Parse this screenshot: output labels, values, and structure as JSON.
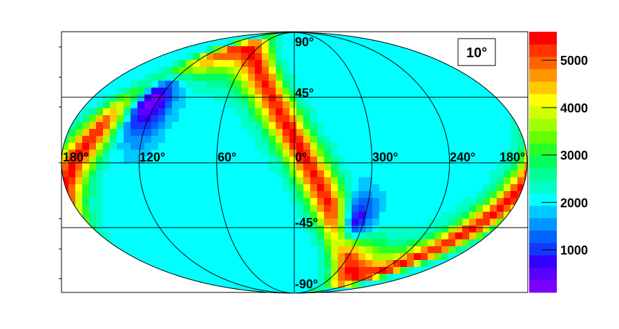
{
  "chart_data": {
    "type": "heatmap",
    "projection": "mollweide",
    "title": "",
    "annotation_box": "10°",
    "longitude_labels": [
      "180°",
      "120°",
      "60°",
      "0°",
      "300°",
      "240°",
      "180°"
    ],
    "longitude_label_values": [
      180,
      120,
      60,
      0,
      300,
      240,
      180
    ],
    "latitude_labels": [
      "90°",
      "45°",
      "-45°",
      "-90°"
    ],
    "latitude_label_values": [
      90,
      45,
      -45,
      -90
    ],
    "colorbar": {
      "ticks": [
        1000,
        2000,
        3000,
        4000,
        5000
      ],
      "tick_labels": [
        "1000",
        "2000",
        "3000",
        "4000",
        "5000"
      ],
      "range": [
        100,
        5600
      ],
      "colors": [
        "#7b00ff",
        "#5a00ff",
        "#3200ff",
        "#1437ff",
        "#0064ff",
        "#0096ff",
        "#00c8ff",
        "#00ffff",
        "#00ffc8",
        "#00ff96",
        "#00ff5a",
        "#28ff28",
        "#64ff00",
        "#a0ff00",
        "#d2ff00",
        "#ffff00",
        "#ffc800",
        "#ff9600",
        "#ff6400",
        "#ff3200",
        "#ff0000"
      ]
    },
    "features": [
      {
        "kind": "minimum",
        "lon": 125,
        "lat": 28,
        "value": 300,
        "spread": 18
      },
      {
        "kind": "minimum",
        "lon": 305,
        "lat": -25,
        "value": 700,
        "spread": 13
      },
      {
        "kind": "maximum_band",
        "description_value": 5500
      }
    ],
    "baseline_value": 2100
  }
}
